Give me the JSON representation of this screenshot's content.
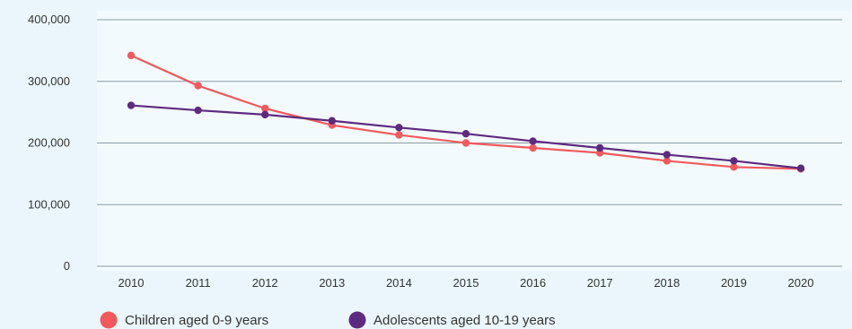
{
  "chart_data": {
    "type": "line",
    "title": "",
    "xlabel": "",
    "ylabel": "",
    "categories": [
      "2010",
      "2011",
      "2012",
      "2013",
      "2014",
      "2015",
      "2016",
      "2017",
      "2018",
      "2019",
      "2020"
    ],
    "ylim": [
      0,
      400000
    ],
    "y_ticks": [
      "0",
      "100,000",
      "200,000",
      "300,000",
      "400,000"
    ],
    "grid": true,
    "legend_position": "bottom-left",
    "series": [
      {
        "name": "Children aged 0-9 years",
        "color": "#f2595c",
        "values": [
          342000,
          293000,
          256000,
          229000,
          213000,
          200000,
          192000,
          184000,
          171000,
          161000,
          158000
        ]
      },
      {
        "name": "Adolescents aged 10-19 years",
        "color": "#5e2a7e",
        "values": [
          261000,
          253000,
          246000,
          236000,
          225000,
          215000,
          203000,
          192000,
          181000,
          171000,
          159000
        ]
      }
    ],
    "colors": {
      "background": "#eaf6fb",
      "plot_background": "#f2fafd",
      "grid": "#8a9aa3"
    }
  }
}
